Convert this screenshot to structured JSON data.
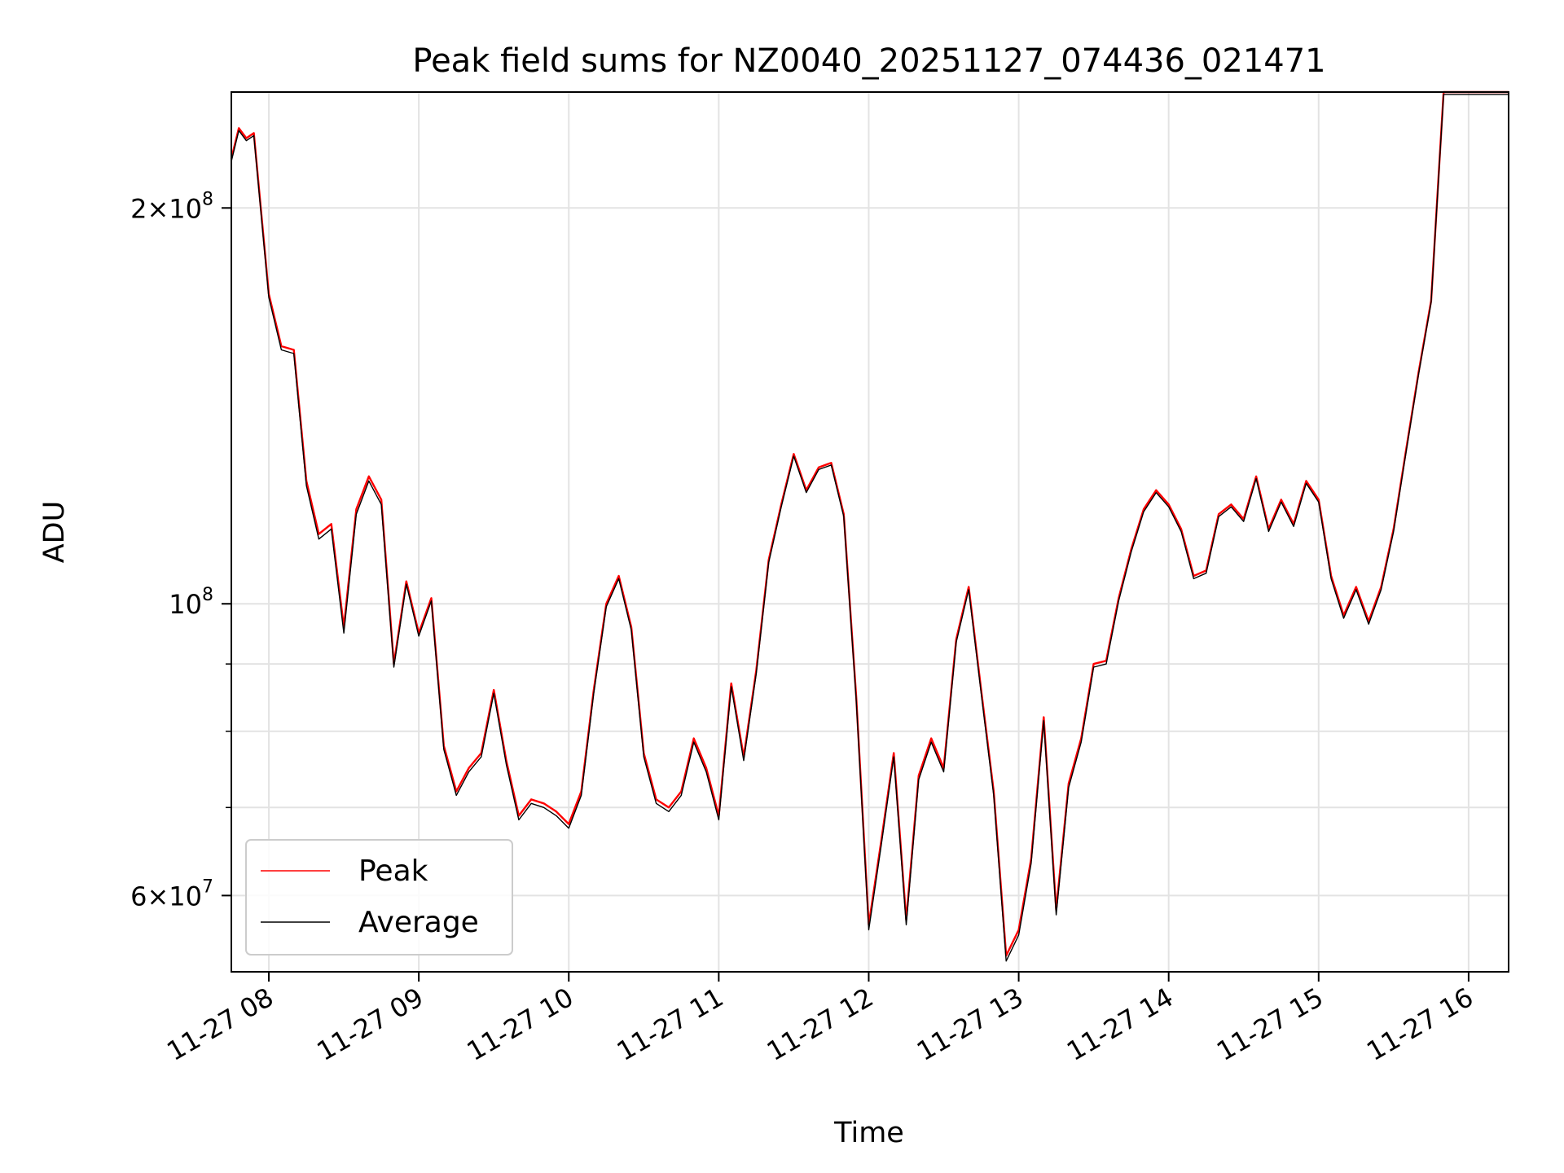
{
  "chart_data": {
    "type": "line",
    "title": "Peak field sums for NZ0040_20251127_074436_021471",
    "xlabel": "Time",
    "ylabel": "ADU",
    "yscale": "log",
    "ylim": [
      52500000,
      245000000
    ],
    "xlim": [
      "11-27 07:45",
      "11-27 16:16"
    ],
    "grid": true,
    "legend_position": "lower-left",
    "x_ticks": [
      "11-27 08",
      "11-27 09",
      "11-27 10",
      "11-27 11",
      "11-27 12",
      "11-27 13",
      "11-27 14",
      "11-27 15",
      "11-27 16"
    ],
    "y_ticks_major": [
      {
        "value": 60000000,
        "mantissa": "6",
        "exponent": "7"
      },
      {
        "value": 100000000,
        "mantissa": "",
        "exponent": "8"
      },
      {
        "value": 200000000,
        "mantissa": "2",
        "exponent": "8"
      }
    ],
    "y_ticks_minor": [
      70000000,
      80000000,
      90000000
    ],
    "x": [
      "07:45",
      "07:48",
      "07:51",
      "07:54",
      "08:00",
      "08:05",
      "08:10",
      "08:15",
      "08:20",
      "08:25",
      "08:30",
      "08:35",
      "08:40",
      "08:45",
      "08:50",
      "08:55",
      "09:00",
      "09:05",
      "09:10",
      "09:15",
      "09:20",
      "09:25",
      "09:30",
      "09:35",
      "09:40",
      "09:45",
      "09:50",
      "09:55",
      "10:00",
      "10:05",
      "10:10",
      "10:15",
      "10:20",
      "10:25",
      "10:30",
      "10:35",
      "10:40",
      "10:45",
      "10:50",
      "10:55",
      "11:00",
      "11:05",
      "11:10",
      "11:15",
      "11:20",
      "11:25",
      "11:30",
      "11:35",
      "11:40",
      "11:45",
      "11:50",
      "11:55",
      "12:00",
      "12:05",
      "12:10",
      "12:15",
      "12:20",
      "12:25",
      "12:30",
      "12:35",
      "12:40",
      "12:45",
      "12:50",
      "12:55",
      "13:00",
      "13:05",
      "13:10",
      "13:15",
      "13:20",
      "13:25",
      "13:30",
      "13:35",
      "13:40",
      "13:45",
      "13:50",
      "13:55",
      "14:00",
      "14:05",
      "14:10",
      "14:15",
      "14:20",
      "14:25",
      "14:30",
      "14:35",
      "14:40",
      "14:45",
      "14:50",
      "14:55",
      "15:00",
      "15:05",
      "15:10",
      "15:15",
      "15:20",
      "15:25",
      "15:30",
      "15:35",
      "15:40",
      "15:45",
      "15:50",
      "15:55",
      "16:00",
      "16:05",
      "16:10",
      "16:16"
    ],
    "series": [
      {
        "name": "Peak",
        "color": "#ff0000",
        "values": [
          218000000,
          230000000,
          226000000,
          228000000,
          172000000,
          157000000,
          156000000,
          124000000,
          113000000,
          115000000,
          96000000,
          118000000,
          125000000,
          120000000,
          90000000,
          104000000,
          95000000,
          101000000,
          78000000,
          72000000,
          75000000,
          77000000,
          86000000,
          76000000,
          69000000,
          71000000,
          70500000,
          69500000,
          68000000,
          72000000,
          86000000,
          100000000,
          105000000,
          96000000,
          77000000,
          71000000,
          70000000,
          72000000,
          79000000,
          75000000,
          69000000,
          87000000,
          76500000,
          89000000,
          108000000,
          119000000,
          130000000,
          122000000,
          127000000,
          128000000,
          117000000,
          85000000,
          57000000,
          66000000,
          77000000,
          57500000,
          74000000,
          79000000,
          75000000,
          94000000,
          103000000,
          86000000,
          72000000,
          54000000,
          56500000,
          64000000,
          82000000,
          58500000,
          73000000,
          79000000,
          90000000,
          90500000,
          101000000,
          110000000,
          118000000,
          122000000,
          119000000,
          114000000,
          105000000,
          106000000,
          117000000,
          119000000,
          116000000,
          125000000,
          114000000,
          120000000,
          115000000,
          124000000,
          120000000,
          105000000,
          98000000,
          103000000,
          97000000,
          103000000,
          114000000,
          131000000,
          150000000,
          170000000,
          245000000,
          245000000,
          245000000,
          245000000,
          245000000,
          245000000
        ]
      },
      {
        "name": "Average",
        "color": "#000000",
        "values": [
          217000000,
          229000000,
          225000000,
          227000000,
          171000000,
          156000000,
          155000000,
          123000000,
          112000000,
          114000000,
          95000000,
          117000000,
          124000000,
          119000000,
          89500000,
          103500000,
          94500000,
          100500000,
          77500000,
          71500000,
          74500000,
          76500000,
          85500000,
          75500000,
          68500000,
          70500000,
          70000000,
          69000000,
          67500000,
          71500000,
          85500000,
          99500000,
          104500000,
          95500000,
          76500000,
          70500000,
          69500000,
          71500000,
          78500000,
          74500000,
          68500000,
          86500000,
          76000000,
          88500000,
          107500000,
          118500000,
          129500000,
          121500000,
          126500000,
          127500000,
          116500000,
          84500000,
          56500000,
          65500000,
          76500000,
          57000000,
          73500000,
          78500000,
          74500000,
          93500000,
          102500000,
          85500000,
          71500000,
          53500000,
          56000000,
          63500000,
          81500000,
          58000000,
          72500000,
          78500000,
          89500000,
          90000000,
          100500000,
          109500000,
          117500000,
          121500000,
          118500000,
          113500000,
          104500000,
          105500000,
          116500000,
          118500000,
          115500000,
          124500000,
          113500000,
          119500000,
          114500000,
          123500000,
          119500000,
          104500000,
          97500000,
          102500000,
          96500000,
          102500000,
          113500000,
          130500000,
          149500000,
          169500000,
          244000000,
          244000000,
          244000000,
          244000000,
          244000000,
          244000000
        ]
      }
    ]
  }
}
